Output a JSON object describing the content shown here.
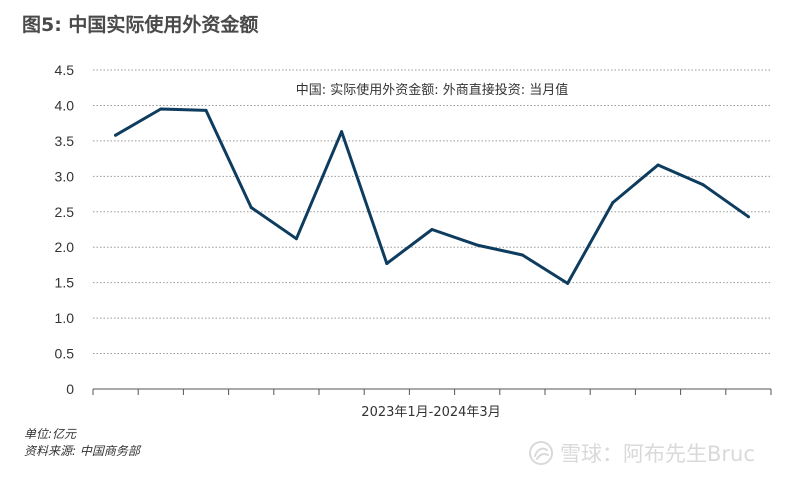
{
  "figure": {
    "title": "图5: 中国实际使用外资金额",
    "unit_note": "单位:亿元",
    "source_note": "资料来源: 中国商务部",
    "watermark": "雪球：阿布先生Bruc"
  },
  "colors": {
    "line": "#0e3c5e",
    "grid": "#9a9a9a",
    "axis_text": "#333333",
    "title": "#4a4a4a",
    "watermark": "#d9d9d9"
  },
  "icons": {
    "watermark": "snowball-logo-icon"
  },
  "chart_data": {
    "type": "line",
    "title": "中国: 实际使用外资金额: 外商直接投资: 当月值",
    "xlabel": "2023年1月-2024年3月",
    "ylabel": "",
    "ylim": [
      0,
      4.5
    ],
    "yticks": [
      "0",
      "0.5",
      "1.0",
      "1.5",
      "2.0",
      "2.5",
      "3.0",
      "3.5",
      "4.0",
      "4.5"
    ],
    "grid": true,
    "x": [
      "2023-01",
      "2023-02",
      "2023-03",
      "2023-04",
      "2023-05",
      "2023-06",
      "2023-07",
      "2023-08",
      "2023-09",
      "2023-10",
      "2023-11",
      "2023-12",
      "2024-01",
      "2024-02",
      "2024-03"
    ],
    "series": [
      {
        "values": [
          3.58,
          3.95,
          3.93,
          2.56,
          2.12,
          3.63,
          1.77,
          2.25,
          2.03,
          1.89,
          1.49,
          2.63,
          3.16,
          2.88,
          2.43
        ]
      }
    ]
  }
}
